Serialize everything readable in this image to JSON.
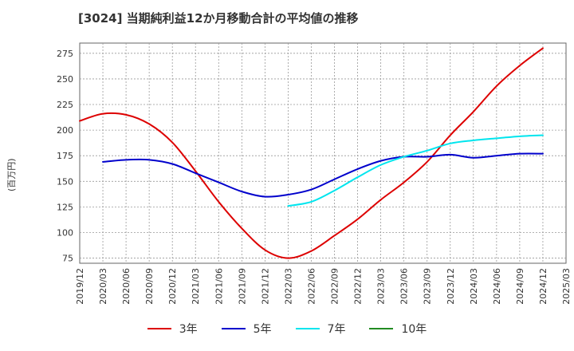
{
  "chart_data": {
    "type": "line",
    "title": "[3024]  当期純利益12か月移動合計の平均値の推移",
    "xlabel": "",
    "ylabel": "(百万円)",
    "ylim": [
      70,
      285
    ],
    "yticks": [
      75,
      100,
      125,
      150,
      175,
      200,
      225,
      250,
      275
    ],
    "xticks": [
      "2019/12",
      "2020/03",
      "2020/06",
      "2020/09",
      "2020/12",
      "2021/03",
      "2021/06",
      "2021/09",
      "2021/12",
      "2022/03",
      "2022/06",
      "2022/09",
      "2022/12",
      "2023/03",
      "2023/06",
      "2023/09",
      "2023/12",
      "2024/03",
      "2024/06",
      "2024/09",
      "2024/12",
      "2025/03"
    ],
    "grid": true,
    "legend_position": "bottom",
    "series": [
      {
        "name": "3年",
        "color": "#dd0000",
        "x": [
          "2019/12",
          "2020/03",
          "2020/06",
          "2020/09",
          "2020/12",
          "2021/03",
          "2021/06",
          "2021/09",
          "2021/12",
          "2022/03",
          "2022/06",
          "2022/09",
          "2022/12",
          "2023/03",
          "2023/06",
          "2023/09",
          "2023/12",
          "2024/03",
          "2024/06",
          "2024/09",
          "2024/12"
        ],
        "values": [
          209,
          216,
          215,
          206,
          188,
          160,
          130,
          104,
          83,
          75,
          82,
          97,
          113,
          132,
          149,
          169,
          195,
          218,
          243,
          263,
          280
        ]
      },
      {
        "name": "5年",
        "color": "#0000cc",
        "x": [
          "2020/03",
          "2020/06",
          "2020/09",
          "2020/12",
          "2021/03",
          "2021/06",
          "2021/09",
          "2021/12",
          "2022/03",
          "2022/06",
          "2022/09",
          "2022/12",
          "2023/03",
          "2023/06",
          "2023/09",
          "2023/12",
          "2024/03",
          "2024/06",
          "2024/09",
          "2024/12"
        ],
        "values": [
          169,
          171,
          171,
          167,
          158,
          149,
          140,
          135,
          137,
          142,
          152,
          162,
          170,
          174,
          174,
          176,
          173,
          175,
          177,
          177
        ]
      },
      {
        "name": "7年",
        "color": "#00e5ee",
        "x": [
          "2022/03",
          "2022/06",
          "2022/09",
          "2022/12",
          "2023/03",
          "2023/06",
          "2023/09",
          "2023/12",
          "2024/03",
          "2024/06",
          "2024/09",
          "2024/12"
        ],
        "values": [
          126,
          130,
          141,
          154,
          166,
          174,
          180,
          187,
          190,
          192,
          194,
          195
        ]
      },
      {
        "name": "10年",
        "color": "#228b22",
        "x": [],
        "values": []
      }
    ]
  }
}
